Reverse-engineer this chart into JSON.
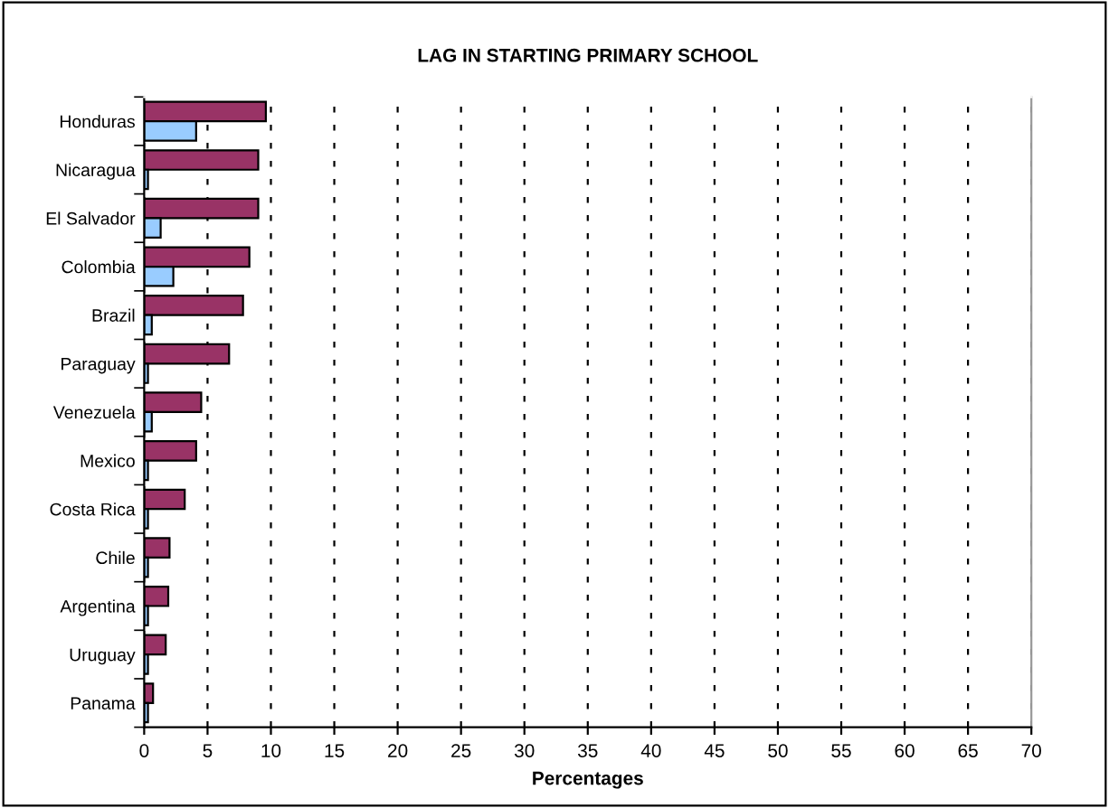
{
  "chart_data": {
    "type": "bar",
    "orientation": "horizontal",
    "title": "LAG IN STARTING PRIMARY SCHOOL",
    "xlabel": "Percentages",
    "categories": [
      "Honduras",
      "Nicaragua",
      "El Salvador",
      "Colombia",
      "Brazil",
      "Paraguay",
      "Venezuela",
      "Mexico",
      "Costa Rica",
      "Chile",
      "Argentina",
      "Uruguay",
      "Panama"
    ],
    "series": [
      {
        "color": "#993366",
        "values": [
          9.6,
          9.0,
          9.0,
          8.3,
          7.8,
          6.7,
          4.5,
          4.1,
          3.2,
          2.0,
          1.9,
          1.7,
          0.7
        ]
      },
      {
        "color": "#99ccff",
        "values": [
          4.1,
          0.3,
          1.3,
          2.3,
          0.6,
          0.3,
          0.6,
          0.3,
          0.3,
          0.3,
          0.3,
          0.3,
          0.3
        ]
      }
    ],
    "xlim": [
      0,
      70
    ],
    "xticks": [
      0,
      5,
      10,
      15,
      20,
      25,
      30,
      35,
      40,
      45,
      50,
      55,
      60,
      65,
      70
    ],
    "grid": "x"
  }
}
